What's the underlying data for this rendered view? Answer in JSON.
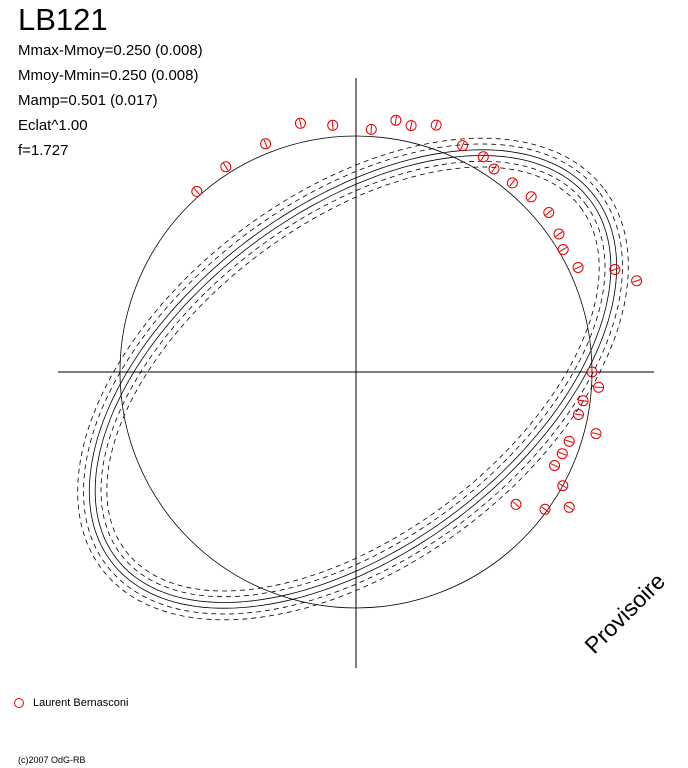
{
  "title": "LB121",
  "info": [
    "Mmax-Mmoy=0.250 (0.008)",
    "Mmoy-Mmin=0.250 (0.008)",
    "Mamp=0.501 (0.017)",
    "Eclat^1.00",
    "f=1.727"
  ],
  "legend": {
    "observer": "Laurent Bernasconi",
    "marker_color": "#e00000"
  },
  "copyright": "(c)2007 OdG-RB",
  "watermark": "Provisoire",
  "chart_data": {
    "type": "scatter",
    "projection": "polar",
    "radius_range": [
      0,
      1
    ],
    "reference_circle_r": 1.0,
    "curve_color": "#000000",
    "points_color": "#e00000",
    "points": [
      {
        "phase": 0.05,
        "r": 1.25
      },
      {
        "phase": 0.06,
        "r": 1.18
      },
      {
        "phase": 0.07,
        "r": 1.04
      },
      {
        "phase": 0.085,
        "r": 1.02
      },
      {
        "phase": 0.095,
        "r": 1.04
      },
      {
        "phase": 0.11,
        "r": 1.06
      },
      {
        "phase": 0.125,
        "r": 1.05
      },
      {
        "phase": 0.14,
        "r": 1.04
      },
      {
        "phase": 0.155,
        "r": 1.04
      },
      {
        "phase": 0.165,
        "r": 1.06
      },
      {
        "phase": 0.18,
        "r": 1.06
      },
      {
        "phase": 0.2,
        "r": 1.1
      },
      {
        "phase": 0.215,
        "r": 1.07
      },
      {
        "phase": 0.225,
        "r": 1.08
      },
      {
        "phase": 0.24,
        "r": 1.03
      },
      {
        "phase": 0.265,
        "r": 1.05
      },
      {
        "phase": 0.285,
        "r": 1.08
      },
      {
        "phase": 0.31,
        "r": 1.04
      },
      {
        "phase": 0.34,
        "r": 1.03
      },
      {
        "phase": 0.365,
        "r": 1.02
      },
      {
        "phase": 0.89,
        "r": 0.88
      },
      {
        "phase": 0.9,
        "r": 0.99
      },
      {
        "phase": 0.91,
        "r": 1.07
      },
      {
        "phase": 0.92,
        "r": 1.0
      },
      {
        "phase": 0.93,
        "r": 0.93
      },
      {
        "phase": 0.94,
        "r": 0.94
      },
      {
        "phase": 0.95,
        "r": 0.95
      },
      {
        "phase": 0.96,
        "r": 1.05
      },
      {
        "phase": 0.97,
        "r": 0.96
      },
      {
        "phase": 0.98,
        "r": 0.97
      },
      {
        "phase": 0.99,
        "r": 1.03
      },
      {
        "phase": 1.0,
        "r": 1.0
      }
    ]
  }
}
